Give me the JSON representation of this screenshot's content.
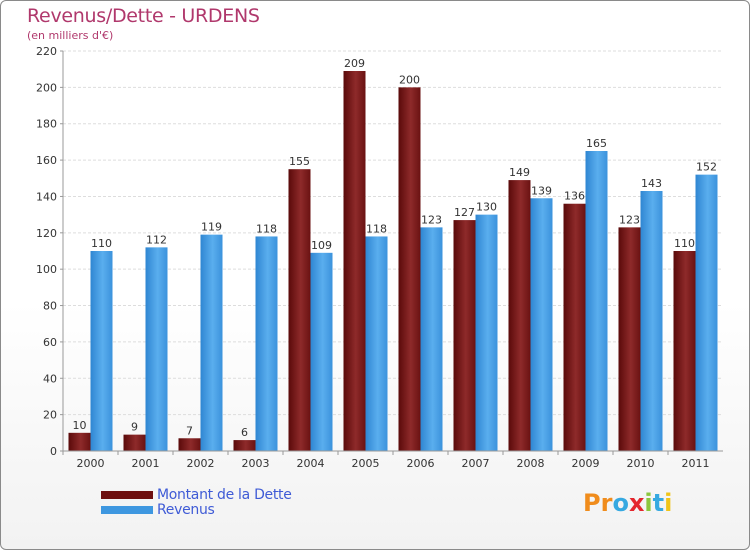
{
  "title": "Revenus/Dette - URDENS",
  "subtitle": "(en milliers d'€)",
  "colors": {
    "debt": "#6e0f0f",
    "debt_light": "#9b3232",
    "revenue": "#3e97e0",
    "revenue_light": "#62b3f0",
    "axis_text": "#333333",
    "grid": "#dddddd"
  },
  "chart_data": {
    "type": "bar",
    "title": "Revenus/Dette - URDENS",
    "ylabel": "(en milliers d'€)",
    "categories": [
      "2000",
      "2001",
      "2002",
      "2003",
      "2004",
      "2005",
      "2006",
      "2007",
      "2008",
      "2009",
      "2010",
      "2011"
    ],
    "series": [
      {
        "name": "Montant de la Dette",
        "values": [
          10,
          9,
          7,
          6,
          155,
          209,
          200,
          127,
          149,
          136,
          123,
          110
        ]
      },
      {
        "name": "Revenus",
        "values": [
          110,
          112,
          119,
          118,
          109,
          118,
          123,
          130,
          139,
          165,
          143,
          152
        ]
      }
    ],
    "ylim": [
      0,
      220
    ],
    "yticks": [
      0,
      20,
      40,
      60,
      80,
      100,
      120,
      140,
      160,
      180,
      200,
      220
    ],
    "grid": true
  },
  "legend": {
    "debt_label": "Montant de la Dette",
    "revenue_label": "Revenus"
  },
  "logo": {
    "letters": [
      "P",
      "r",
      "o",
      "x",
      "i",
      "t",
      "i"
    ],
    "colors": [
      "#f08c1c",
      "#f08c1c",
      "#36a9e1",
      "#e4262d",
      "#8cc63e",
      "#36a9e1",
      "#f0c419"
    ]
  }
}
